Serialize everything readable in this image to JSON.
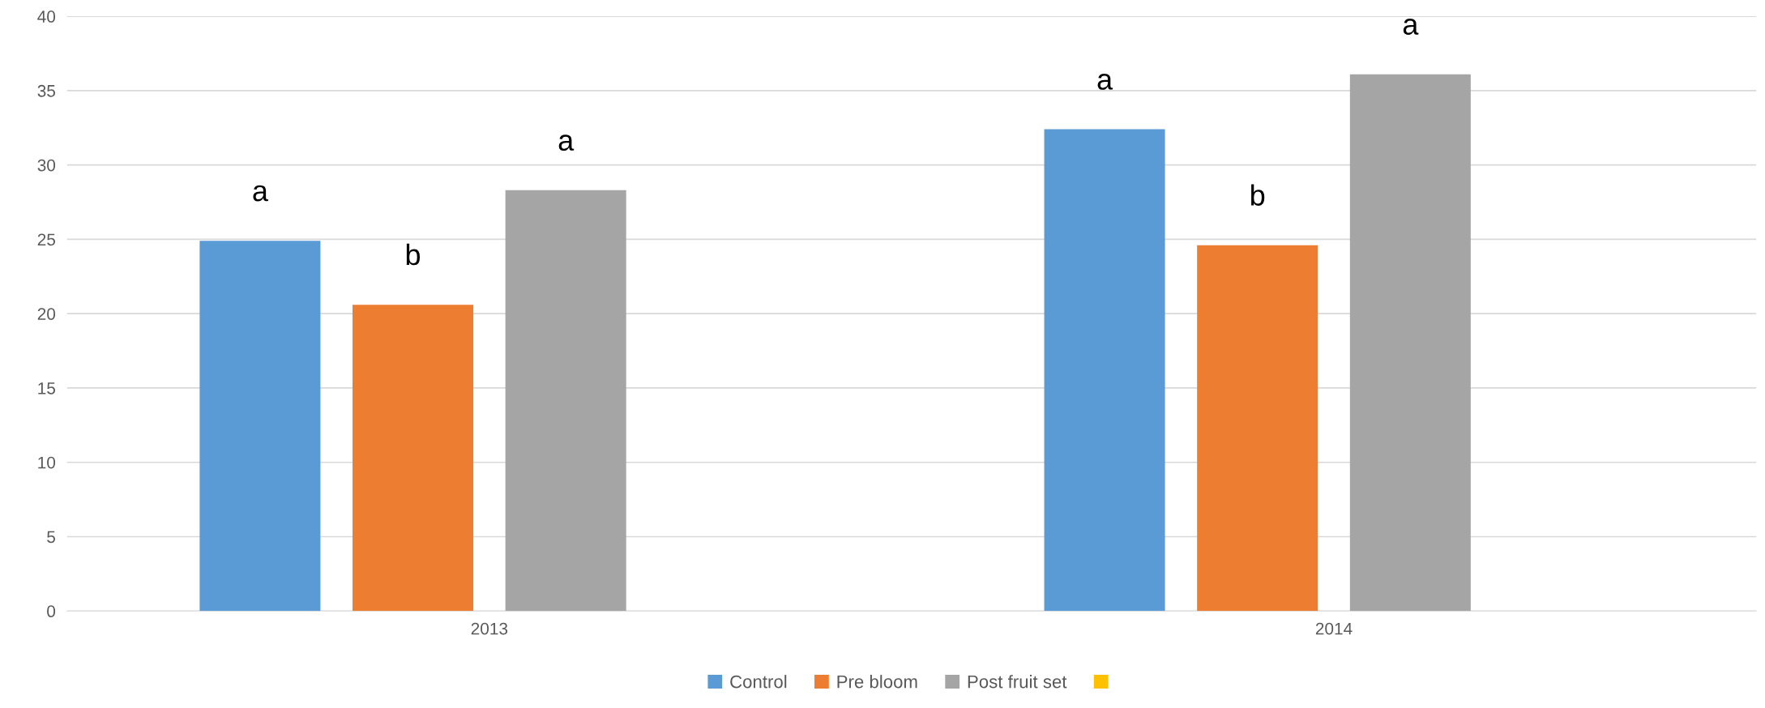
{
  "chart_data": {
    "type": "bar",
    "categories": [
      "2013",
      "2014"
    ],
    "series": [
      {
        "name": "Control",
        "color": "#5b9bd5",
        "values": [
          24.9,
          32.4
        ]
      },
      {
        "name": "Pre bloom",
        "color": "#ed7d31",
        "values": [
          20.6,
          24.6
        ]
      },
      {
        "name": "Post fruit set",
        "color": "#a5a5a5",
        "values": [
          28.3,
          36.1
        ]
      },
      {
        "color": "#ffc000",
        "values": [
          null,
          null
        ]
      }
    ],
    "ylim": [
      0,
      40
    ],
    "yticks": [
      0,
      5,
      10,
      15,
      20,
      25,
      30,
      35,
      40
    ],
    "grid": "y",
    "legend": "bottom",
    "annotations": [
      "a",
      "b",
      "a",
      "a",
      "b",
      "a"
    ]
  }
}
